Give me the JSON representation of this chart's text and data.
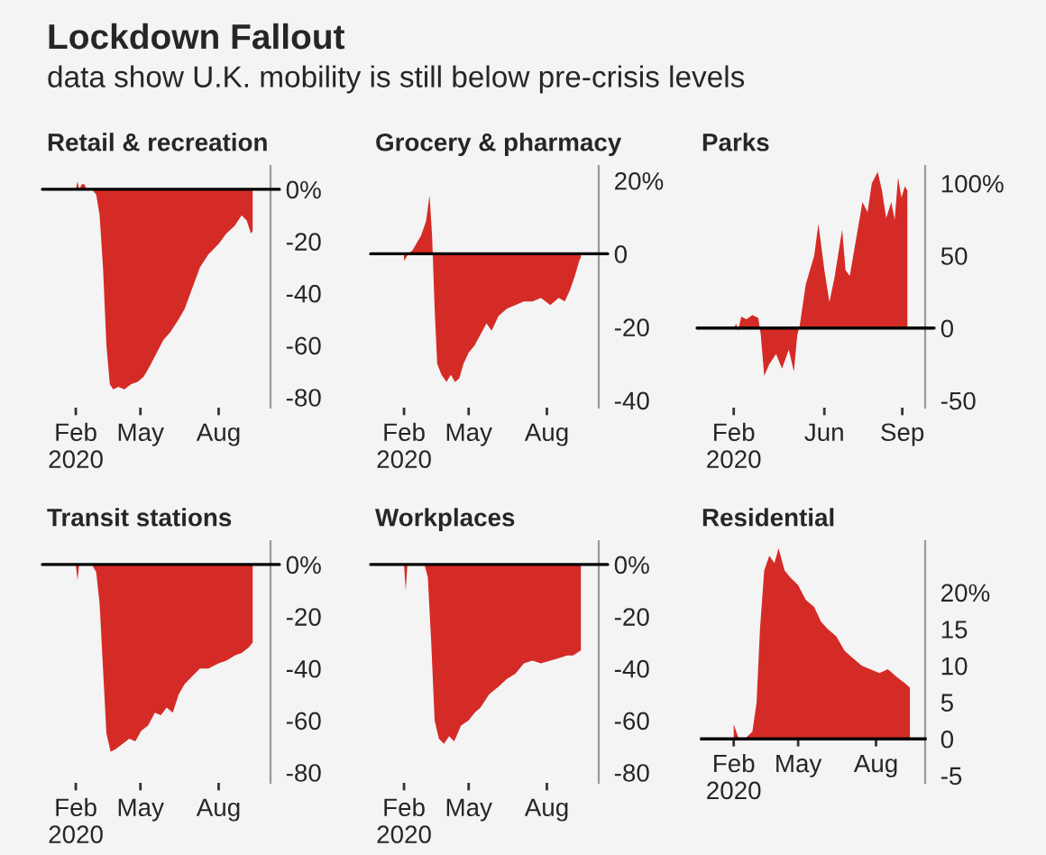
{
  "chart_data": [
    {
      "type": "other",
      "title": "Lockdown Fallout",
      "subtitle": "data show U.K. mobility is still below pre-crisis levels"
    },
    {
      "type": "area",
      "title": "Retail & recreation",
      "color": "#d52b26",
      "x": [
        "2020-02-15",
        "2020-02-17",
        "2020-02-19",
        "2020-02-22",
        "2020-02-25",
        "2020-02-28",
        "2020-03-05",
        "2020-03-10",
        "2020-03-14",
        "2020-03-18",
        "2020-03-22",
        "2020-03-26",
        "2020-03-30",
        "2020-04-05",
        "2020-04-12",
        "2020-04-20",
        "2020-04-28",
        "2020-05-05",
        "2020-05-12",
        "2020-05-20",
        "2020-05-28",
        "2020-06-05",
        "2020-06-15",
        "2020-06-22",
        "2020-07-01",
        "2020-07-10",
        "2020-07-20",
        "2020-08-01",
        "2020-08-10",
        "2020-08-20",
        "2020-08-28",
        "2020-09-03",
        "2020-09-08",
        "2020-09-10"
      ],
      "values": [
        0,
        3,
        0,
        2,
        2,
        0,
        0,
        -2,
        -10,
        -30,
        -60,
        -75,
        -77,
        -76,
        -77,
        -75,
        -74,
        -72,
        -68,
        -63,
        -58,
        -55,
        -50,
        -46,
        -38,
        -30,
        -25,
        -21,
        -17,
        -14,
        -10,
        -12,
        -17,
        -16
      ],
      "xlim": [
        "2020-01-12",
        "2020-10-01"
      ],
      "xticks": [
        {
          "value": "2020-02-15",
          "label": "Feb\n2020"
        },
        {
          "value": "2020-05-01",
          "label": "May"
        },
        {
          "value": "2020-08-01",
          "label": "Aug"
        }
      ],
      "ylim": [
        -84,
        9
      ],
      "yticks": [
        {
          "value": 0,
          "label": "0%"
        },
        -20,
        -40,
        -60,
        -80
      ],
      "ref_lines": [
        {
          "axis": "y",
          "value": 0,
          "color": "#000000"
        }
      ]
    },
    {
      "type": "area",
      "title": "Grocery & pharmacy",
      "color": "#d52b26",
      "x": [
        "2020-02-15",
        "2020-02-20",
        "2020-02-25",
        "2020-03-01",
        "2020-03-06",
        "2020-03-12",
        "2020-03-16",
        "2020-03-19",
        "2020-03-22",
        "2020-03-25",
        "2020-03-30",
        "2020-04-05",
        "2020-04-10",
        "2020-04-15",
        "2020-04-20",
        "2020-04-25",
        "2020-05-01",
        "2020-05-08",
        "2020-05-15",
        "2020-05-22",
        "2020-05-28",
        "2020-06-05",
        "2020-06-15",
        "2020-06-25",
        "2020-07-05",
        "2020-07-15",
        "2020-07-25",
        "2020-08-05",
        "2020-08-15",
        "2020-08-22",
        "2020-08-28",
        "2020-09-03",
        "2020-09-08",
        "2020-09-10"
      ],
      "values": [
        -2,
        0,
        1,
        3,
        5,
        9,
        16,
        5,
        -15,
        -30,
        -33,
        -35,
        -33,
        -35,
        -34,
        -30,
        -27,
        -25,
        -22,
        -19,
        -21,
        -17,
        -15,
        -14,
        -13,
        -13,
        -12,
        -14,
        -12,
        -13,
        -10,
        -6,
        -2,
        -1
      ],
      "xlim": [
        "2020-01-12",
        "2020-10-01"
      ],
      "xticks": [
        {
          "value": "2020-02-15",
          "label": "Feb\n2020"
        },
        {
          "value": "2020-05-01",
          "label": "May"
        },
        {
          "value": "2020-08-01",
          "label": "Aug"
        }
      ],
      "ylim": [
        -42,
        24
      ],
      "yticks": [
        {
          "value": 20,
          "label": "20%"
        },
        0,
        -20,
        -40
      ],
      "ref_lines": [
        {
          "axis": "y",
          "value": 0,
          "color": "#000000"
        }
      ]
    },
    {
      "type": "area",
      "title": "Parks",
      "color": "#d52b26",
      "x": [
        "2020-02-15",
        "2020-02-18",
        "2020-02-20",
        "2020-02-24",
        "2020-03-01",
        "2020-03-08",
        "2020-03-15",
        "2020-03-18",
        "2020-03-22",
        "2020-03-28",
        "2020-04-05",
        "2020-04-12",
        "2020-04-20",
        "2020-04-26",
        "2020-04-30",
        "2020-05-03",
        "2020-05-10",
        "2020-05-20",
        "2020-05-25",
        "2020-06-01",
        "2020-06-07",
        "2020-06-13",
        "2020-06-22",
        "2020-06-26",
        "2020-07-01",
        "2020-07-08",
        "2020-07-16",
        "2020-07-22",
        "2020-07-27",
        "2020-08-03",
        "2020-08-08",
        "2020-08-13",
        "2020-08-19",
        "2020-08-23",
        "2020-08-27",
        "2020-08-31",
        "2020-09-04",
        "2020-09-07"
      ],
      "values": [
        0,
        3,
        -2,
        8,
        6,
        9,
        7,
        -5,
        -33,
        -25,
        -18,
        -28,
        -15,
        -30,
        -5,
        2,
        30,
        50,
        72,
        40,
        18,
        35,
        68,
        40,
        36,
        60,
        87,
        80,
        100,
        108,
        95,
        76,
        87,
        75,
        104,
        90,
        98,
        95
      ],
      "xlim": [
        "2020-01-08",
        "2020-09-28"
      ],
      "xticks": [
        {
          "value": "2020-02-15",
          "label": "Feb\n2020"
        },
        {
          "value": "2020-06-01",
          "label": "Jun"
        },
        {
          "value": "2020-09-01",
          "label": "Sep"
        }
      ],
      "ylim": [
        -55,
        112
      ],
      "yticks": [
        {
          "value": 100,
          "label": "100%"
        },
        50,
        0,
        -50
      ],
      "ref_lines": [
        {
          "axis": "y",
          "value": 0,
          "color": "#000000"
        }
      ]
    },
    {
      "type": "area",
      "title": "Transit stations",
      "color": "#d52b26",
      "x": [
        "2020-02-15",
        "2020-02-17",
        "2020-02-19",
        "2020-03-05",
        "2020-03-10",
        "2020-03-14",
        "2020-03-18",
        "2020-03-22",
        "2020-03-27",
        "2020-04-02",
        "2020-04-10",
        "2020-04-18",
        "2020-04-25",
        "2020-05-02",
        "2020-05-10",
        "2020-05-18",
        "2020-05-25",
        "2020-06-01",
        "2020-06-08",
        "2020-06-15",
        "2020-06-22",
        "2020-07-01",
        "2020-07-10",
        "2020-07-20",
        "2020-08-01",
        "2020-08-10",
        "2020-08-20",
        "2020-08-28",
        "2020-09-05",
        "2020-09-10"
      ],
      "values": [
        0,
        -6,
        0,
        0,
        -3,
        -15,
        -40,
        -65,
        -72,
        -71,
        -69,
        -67,
        -68,
        -64,
        -62,
        -57,
        -58,
        -55,
        -57,
        -50,
        -46,
        -43,
        -40,
        -40,
        -38,
        -37,
        -35,
        -34,
        -32,
        -30
      ],
      "xlim": [
        "2020-01-12",
        "2020-10-01"
      ],
      "xticks": [
        {
          "value": "2020-02-15",
          "label": "Feb\n2020"
        },
        {
          "value": "2020-05-01",
          "label": "May"
        },
        {
          "value": "2020-08-01",
          "label": "Aug"
        }
      ],
      "ylim": [
        -84,
        9
      ],
      "yticks": [
        {
          "value": 0,
          "label": "0%"
        },
        -20,
        -40,
        -60,
        -80
      ],
      "ref_lines": [
        {
          "axis": "y",
          "value": 0,
          "color": "#000000"
        }
      ]
    },
    {
      "type": "area",
      "title": "Workplaces",
      "color": "#d52b26",
      "x": [
        "2020-02-15",
        "2020-02-17",
        "2020-02-19",
        "2020-03-10",
        "2020-03-14",
        "2020-03-18",
        "2020-03-22",
        "2020-03-27",
        "2020-04-02",
        "2020-04-08",
        "2020-04-14",
        "2020-04-22",
        "2020-05-01",
        "2020-05-08",
        "2020-05-15",
        "2020-05-25",
        "2020-06-05",
        "2020-06-15",
        "2020-06-25",
        "2020-07-05",
        "2020-07-15",
        "2020-07-25",
        "2020-08-05",
        "2020-08-15",
        "2020-08-25",
        "2020-09-01",
        "2020-09-10"
      ],
      "values": [
        0,
        -10,
        0,
        0,
        -5,
        -30,
        -60,
        -67,
        -69,
        -66,
        -68,
        -62,
        -60,
        -57,
        -55,
        -50,
        -47,
        -44,
        -42,
        -38,
        -37,
        -38,
        -37,
        -36,
        -35,
        -35,
        -33
      ],
      "xlim": [
        "2020-01-12",
        "2020-10-01"
      ],
      "xticks": [
        {
          "value": "2020-02-15",
          "label": "Feb\n2020"
        },
        {
          "value": "2020-05-01",
          "label": "May"
        },
        {
          "value": "2020-08-01",
          "label": "Aug"
        }
      ],
      "ylim": [
        -84,
        9
      ],
      "yticks": [
        {
          "value": 0,
          "label": "0%"
        },
        -20,
        -40,
        -60,
        -80
      ],
      "ref_lines": [
        {
          "axis": "y",
          "value": 0,
          "color": "#000000"
        }
      ]
    },
    {
      "type": "area",
      "title": "Residential",
      "color": "#d52b26",
      "x": [
        "2020-02-15",
        "2020-02-18",
        "2020-02-21",
        "2020-02-28",
        "2020-03-08",
        "2020-03-13",
        "2020-03-17",
        "2020-03-22",
        "2020-03-28",
        "2020-04-03",
        "2020-04-08",
        "2020-04-15",
        "2020-04-22",
        "2020-05-01",
        "2020-05-10",
        "2020-05-20",
        "2020-05-28",
        "2020-06-05",
        "2020-06-15",
        "2020-06-25",
        "2020-07-05",
        "2020-07-15",
        "2020-07-25",
        "2020-08-05",
        "2020-08-15",
        "2020-08-25",
        "2020-09-05",
        "2020-09-10"
      ],
      "values": [
        2,
        1,
        0,
        0,
        1,
        5,
        15,
        23,
        25,
        24,
        26,
        23,
        22,
        21,
        19,
        18,
        16,
        15,
        14,
        12,
        11,
        10,
        9.5,
        9,
        9.5,
        8.5,
        7.5,
        7
      ],
      "xlim": [
        "2020-01-08",
        "2020-09-28"
      ],
      "xticks": [
        {
          "value": "2020-02-15",
          "label": "Feb\n2020"
        },
        {
          "value": "2020-05-01",
          "label": "May"
        },
        {
          "value": "2020-08-01",
          "label": "Aug"
        }
      ],
      "ylim": [
        -6,
        27
      ],
      "yticks": [
        {
          "value": 20,
          "label": "20%"
        },
        15,
        10,
        5,
        0,
        -5
      ]
    }
  ]
}
